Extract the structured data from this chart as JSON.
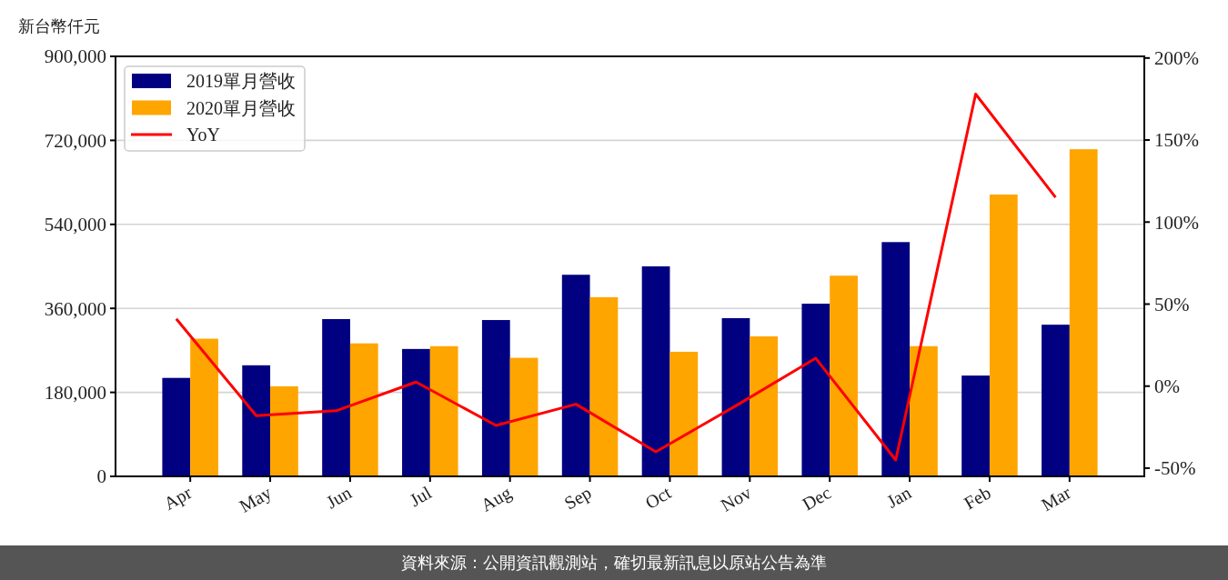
{
  "chart_data": {
    "type": "bar",
    "ylabel": "新台幣仟元",
    "categories": [
      "Apr",
      "May",
      "Jun",
      "Jul",
      "Aug",
      "Sep",
      "Oct",
      "Nov",
      "Dec",
      "Jan",
      "Feb",
      "Mar"
    ],
    "series": [
      {
        "name": "2019單月營收",
        "color": "#000080",
        "values": [
          211000,
          238000,
          337000,
          273000,
          335000,
          432000,
          450000,
          339000,
          370000,
          502000,
          216000,
          325000
        ]
      },
      {
        "name": "2020單月營收",
        "color": "#ffa500",
        "values": [
          295000,
          193000,
          285000,
          279000,
          254000,
          384000,
          267000,
          300000,
          430000,
          279000,
          604000,
          701000
        ]
      },
      {
        "name": "YoY",
        "type": "line",
        "axis": "y2",
        "color": "#ff0000",
        "values": [
          41,
          -18,
          -15,
          2.5,
          -24,
          -11,
          -40,
          -12,
          17,
          -45,
          178,
          115
        ]
      }
    ],
    "ylim": [
      0,
      900000
    ],
    "yticks": [
      0,
      {
        "value": 180000,
        "label": "180,000"
      },
      {
        "value": 360000,
        "label": "360,000"
      },
      {
        "value": 540000,
        "label": "540,000"
      },
      {
        "value": 720000,
        "label": "720,000"
      },
      {
        "value": 900000,
        "label": "900,000"
      }
    ],
    "y2lim": [
      -55,
      201
    ],
    "y2ticks": [
      {
        "value": -50,
        "label": "-50%"
      },
      {
        "value": 0,
        "label": "0%"
      },
      {
        "value": 50,
        "label": "50%"
      },
      {
        "value": 100,
        "label": "100%"
      },
      {
        "value": 150,
        "label": "150%"
      },
      {
        "value": 200,
        "label": "200%"
      }
    ],
    "grid": "y",
    "legend": "top left",
    "annotations": [
      "資料來源：公開資訊觀測站，確切最新訊息以原站公告為準"
    ]
  }
}
